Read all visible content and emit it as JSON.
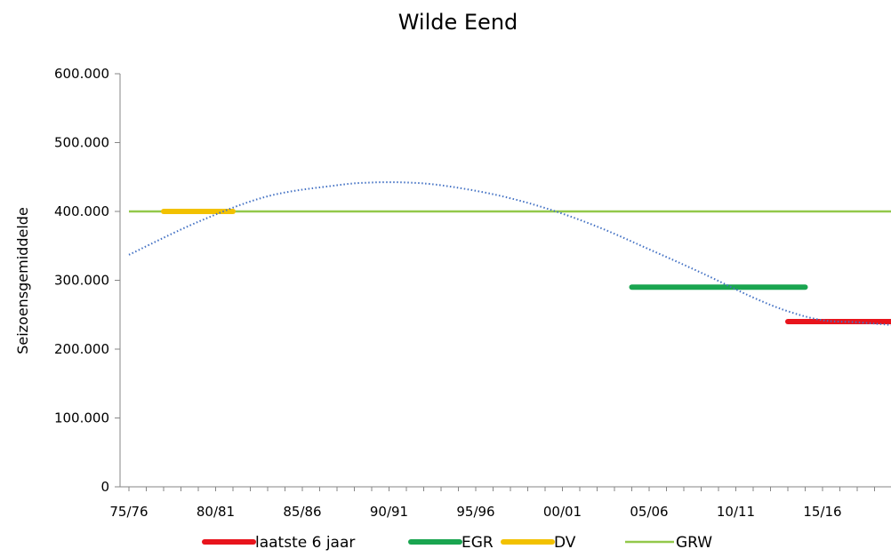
{
  "chart_data": {
    "type": "line",
    "title": "Wilde Eend",
    "xlabel": "",
    "ylabel": "Seizoensgemiddelde",
    "y_ticks": [
      "0",
      "100.000",
      "200.000",
      "300.000",
      "400.000",
      "500.000",
      "600.000"
    ],
    "x_ticks": [
      "75/76",
      "80/81",
      "85/86",
      "90/91",
      "95/96",
      "00/01",
      "05/06",
      "10/11",
      "15/16"
    ],
    "ylim": [
      0,
      600000
    ],
    "grid": false,
    "legend_position": "bottom",
    "series": [
      {
        "name": "laatste 6 jaar",
        "color": "#e8141c",
        "style": "thick",
        "x": [
          "13/14",
          "19/20"
        ],
        "y": [
          240000,
          240000
        ]
      },
      {
        "name": "EGR",
        "color": "#1aa550",
        "style": "thick",
        "x": [
          "04/05",
          "14/15"
        ],
        "y": [
          290000,
          290000
        ]
      },
      {
        "name": "DV",
        "color": "#f2c100",
        "style": "thick",
        "x": [
          "77/78",
          "81/82"
        ],
        "y": [
          400000,
          400000
        ]
      },
      {
        "name": "GRW",
        "color": "#92c84a",
        "style": "thin",
        "x": [
          "75/76",
          "19/20"
        ],
        "y": [
          400000,
          400000
        ]
      }
    ],
    "trend": {
      "color": "#4472c4",
      "style": "dotted",
      "x": [
        "75/76",
        "79/80",
        "83/84",
        "87/88",
        "89/90",
        "91/92",
        "93/94",
        "96/97",
        "99/00",
        "02/03",
        "05/06",
        "08/09",
        "11/12",
        "13/14",
        "15/16",
        "17/18",
        "19/20"
      ],
      "y": [
        337000,
        385000,
        422000,
        438000,
        442000,
        442000,
        438000,
        425000,
        405000,
        378000,
        345000,
        311000,
        275000,
        255000,
        242000,
        239000,
        235000
      ]
    }
  }
}
